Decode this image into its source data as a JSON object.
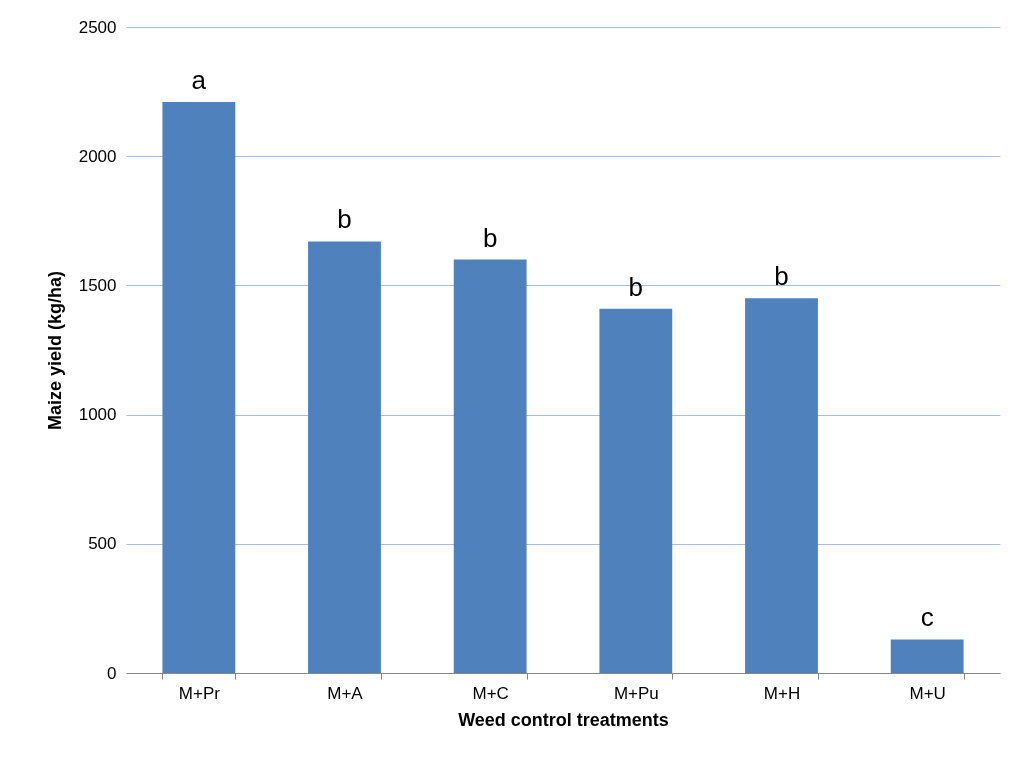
{
  "chart_data": {
    "type": "bar",
    "xlabel": "Weed control treatments",
    "ylabel": "Maize yield (kg/ha)",
    "categories": [
      "M+Pr",
      "M+A",
      "M+C",
      "M+Pu",
      "M+H",
      "M+U"
    ],
    "values": [
      2210,
      1670,
      1600,
      1410,
      1450,
      130
    ],
    "color": "#4f81bd",
    "ylim": [
      0,
      2500
    ],
    "yticks": [
      0,
      500,
      1000,
      1500,
      2000,
      2500
    ],
    "grid": "y",
    "annotations": [
      {
        "text": "a",
        "x": "M+Pr",
        "y": 2210
      },
      {
        "text": "b",
        "x": "M+A",
        "y": 1670
      },
      {
        "text": "b",
        "x": "M+C",
        "y": 1600
      },
      {
        "text": "b",
        "x": "M+Pu",
        "y": 1410
      },
      {
        "text": "b",
        "x": "M+H",
        "y": 1450
      },
      {
        "text": "c",
        "x": "M+U",
        "y": 130
      }
    ]
  }
}
